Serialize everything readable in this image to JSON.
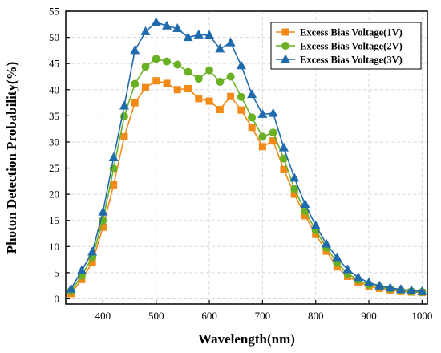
{
  "chart_data": {
    "type": "line",
    "title": "",
    "xlabel": "Wavelength(nm)",
    "ylabel": "Photon Detection Probability(%)",
    "xlim": [
      330,
      1010
    ],
    "ylim": [
      -1,
      55
    ],
    "xticks": [
      400,
      500,
      600,
      700,
      800,
      900,
      1000
    ],
    "yticks": [
      0,
      5,
      10,
      15,
      20,
      25,
      30,
      35,
      40,
      45,
      50,
      55
    ],
    "grid": true,
    "legend_position": "top-right",
    "x": [
      340,
      360,
      380,
      400,
      420,
      440,
      460,
      480,
      500,
      520,
      540,
      560,
      580,
      600,
      620,
      640,
      660,
      680,
      700,
      720,
      740,
      760,
      780,
      800,
      820,
      840,
      860,
      880,
      900,
      920,
      940,
      960,
      980,
      1000
    ],
    "series": [
      {
        "name": "Excess Bias Voltage(1V)",
        "color": "#f28a17",
        "marker": "square",
        "values": [
          1.0,
          3.7,
          7.0,
          13.7,
          21.8,
          31.0,
          37.5,
          40.4,
          41.7,
          41.2,
          40.0,
          40.2,
          38.3,
          37.8,
          36.2,
          38.7,
          36.1,
          32.8,
          29.1,
          30.2,
          24.7,
          20.0,
          15.9,
          12.3,
          9.1,
          6.1,
          4.3,
          3.2,
          2.4,
          2.0,
          1.7,
          1.4,
          1.3,
          1.2
        ]
      },
      {
        "name": "Excess Bias Voltage(2V)",
        "color": "#6ab023",
        "marker": "circle",
        "values": [
          1.5,
          4.4,
          8.0,
          15.0,
          24.9,
          34.9,
          41.1,
          44.4,
          45.9,
          45.4,
          44.8,
          43.4,
          42.1,
          43.7,
          41.5,
          42.5,
          38.6,
          34.7,
          31.0,
          31.8,
          26.8,
          21.0,
          16.8,
          13.1,
          9.8,
          6.9,
          4.8,
          3.6,
          2.7,
          2.3,
          1.9,
          1.6,
          1.4,
          1.3
        ]
      },
      {
        "name": "Excess Bias Voltage(3V)",
        "color": "#1f69ad",
        "marker": "triangle",
        "values": [
          1.9,
          5.4,
          9.0,
          16.6,
          27.0,
          36.9,
          47.5,
          51.1,
          52.9,
          52.2,
          51.7,
          50.0,
          50.5,
          50.4,
          47.8,
          49.0,
          44.6,
          39.1,
          35.3,
          35.5,
          28.9,
          23.1,
          18.1,
          14.0,
          10.5,
          7.9,
          5.6,
          4.1,
          3.1,
          2.5,
          2.1,
          1.8,
          1.6,
          1.4
        ]
      }
    ]
  }
}
